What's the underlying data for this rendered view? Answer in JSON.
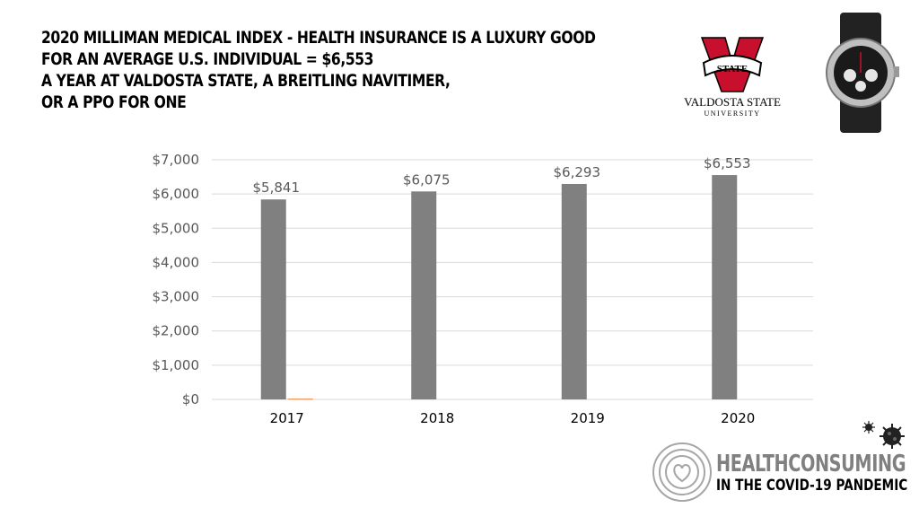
{
  "title_lines": [
    "2020 Milliman Medical Index - Health Insurance is a Luxury Good",
    "For an Average U.S. Individual = $6,553",
    "A year at Valdosta State, a Breitling Navitimer,",
    "or a PPO for one"
  ],
  "logos": {
    "university_badge_text": "STATE",
    "university_name": "VALDOSTA STATE",
    "university_sub": "UNIVERSITY",
    "icon": "breitling-watch-icon"
  },
  "brand": {
    "line1": "HEALTHCONSUMING",
    "line2": "IN THE COVID-19 PANDEMIC",
    "icon": "heart-circles-icon",
    "virus_icon": "virus-icon"
  },
  "colors": {
    "bar": "#808080",
    "secondary_bar": "#ed7d31",
    "grid": "#d9d9d9",
    "axis_text": "#595959",
    "vsu_red": "#c8102e"
  },
  "chart_data": {
    "type": "bar",
    "categories": [
      "2017",
      "2018",
      "2019",
      "2020"
    ],
    "series": [
      {
        "values": [
          5841,
          6075,
          6293,
          6553
        ]
      },
      {
        "values": [
          20,
          0,
          0,
          0
        ]
      }
    ],
    "data_labels": [
      "$5,841",
      "$6,075",
      "$6,293",
      "$6,553"
    ],
    "yticks": [
      "$0",
      "$1,000",
      "$2,000",
      "$3,000",
      "$4,000",
      "$5,000",
      "$6,000",
      "$7,000"
    ],
    "ylim": [
      0,
      7000
    ],
    "grid": true,
    "legend": "none",
    "title": "",
    "xlabel": "",
    "ylabel": ""
  }
}
